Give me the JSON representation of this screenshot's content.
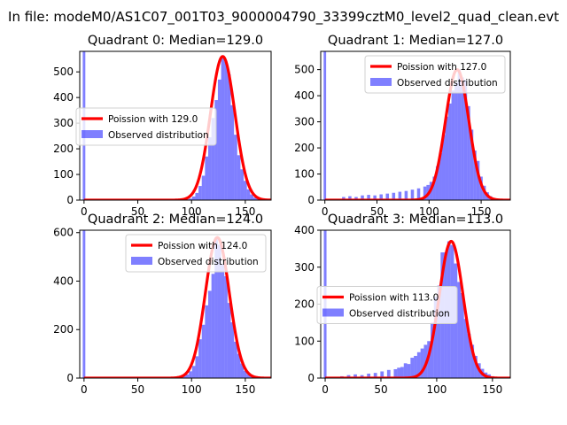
{
  "suptitle": "In file: modeM0/AS1C07_001T03_9000004790_33399cztM0_level2_quad_clean.evt",
  "colors": {
    "hist": "#0000ff",
    "hist_opacity": 0.5,
    "fit_line": "#ff0000",
    "axes": "#000000",
    "background": "#ffffff"
  },
  "legend_hist_label": "Observed distribution",
  "chart_data": [
    {
      "type": "histogram+line",
      "quadrant": 0,
      "title": "Quadrant 0: Median=129.0",
      "fit_label": "Poission with 129.0",
      "mean": 129.0,
      "xlim": [
        -4,
        174
      ],
      "ylim": [
        0,
        580
      ],
      "xticks": [
        0,
        50,
        100,
        150
      ],
      "yticks": [
        0,
        100,
        200,
        300,
        400,
        500
      ],
      "legend_loc": "center-left",
      "bin_width": 3,
      "spike": {
        "x": 0,
        "value": 580
      },
      "hist": [
        [
          90,
          1
        ],
        [
          93,
          1
        ],
        [
          96,
          3
        ],
        [
          99,
          6
        ],
        [
          102,
          14
        ],
        [
          105,
          28
        ],
        [
          108,
          55
        ],
        [
          111,
          95
        ],
        [
          114,
          170
        ],
        [
          117,
          245
        ],
        [
          120,
          320
        ],
        [
          123,
          390
        ],
        [
          126,
          470
        ],
        [
          129,
          560
        ],
        [
          132,
          540
        ],
        [
          135,
          490
        ],
        [
          138,
          370
        ],
        [
          141,
          255
        ],
        [
          144,
          175
        ],
        [
          147,
          120
        ],
        [
          150,
          75
        ],
        [
          153,
          42
        ],
        [
          156,
          22
        ],
        [
          159,
          10
        ],
        [
          162,
          5
        ],
        [
          165,
          2
        ],
        [
          168,
          1
        ]
      ]
    },
    {
      "type": "histogram+line",
      "quadrant": 1,
      "title": "Quadrant 1: Median=127.0",
      "fit_label": "Poission with 127.0",
      "mean": 127.0,
      "xlim": [
        -4,
        178
      ],
      "ylim": [
        0,
        570
      ],
      "xticks": [
        0,
        50,
        100,
        150
      ],
      "yticks": [
        0,
        100,
        200,
        300,
        400,
        500
      ],
      "legend_loc": "upper-right",
      "bin_width": 3,
      "spike": {
        "x": 0,
        "value": 570
      },
      "hist": [
        [
          18,
          12
        ],
        [
          24,
          15
        ],
        [
          30,
          12
        ],
        [
          36,
          18
        ],
        [
          42,
          20
        ],
        [
          48,
          18
        ],
        [
          54,
          22
        ],
        [
          60,
          25
        ],
        [
          66,
          28
        ],
        [
          72,
          32
        ],
        [
          78,
          35
        ],
        [
          84,
          40
        ],
        [
          90,
          45
        ],
        [
          96,
          52
        ],
        [
          99,
          58
        ],
        [
          102,
          70
        ],
        [
          105,
          90
        ],
        [
          108,
          130
        ],
        [
          111,
          180
        ],
        [
          114,
          250
        ],
        [
          117,
          320
        ],
        [
          120,
          370
        ],
        [
          123,
          420
        ],
        [
          126,
          450
        ],
        [
          129,
          500
        ],
        [
          132,
          470
        ],
        [
          135,
          460
        ],
        [
          138,
          360
        ],
        [
          141,
          270
        ],
        [
          144,
          190
        ],
        [
          147,
          150
        ],
        [
          150,
          90
        ],
        [
          153,
          55
        ],
        [
          156,
          30
        ],
        [
          159,
          15
        ],
        [
          162,
          8
        ],
        [
          165,
          4
        ],
        [
          168,
          2
        ]
      ]
    },
    {
      "type": "histogram+line",
      "quadrant": 2,
      "title": "Quadrant 2: Median=124.0",
      "fit_label": "Poission with 124.0",
      "mean": 124.0,
      "xlim": [
        -4,
        174
      ],
      "ylim": [
        0,
        610
      ],
      "xticks": [
        0,
        50,
        100,
        150
      ],
      "yticks": [
        0,
        200,
        400,
        600
      ],
      "legend_loc": "upper-right",
      "bin_width": 3,
      "spike": {
        "x": 0,
        "value": 610
      },
      "hist": [
        [
          84,
          2
        ],
        [
          87,
          3
        ],
        [
          90,
          5
        ],
        [
          93,
          8
        ],
        [
          96,
          15
        ],
        [
          99,
          28
        ],
        [
          102,
          50
        ],
        [
          105,
          90
        ],
        [
          108,
          160
        ],
        [
          111,
          220
        ],
        [
          114,
          300
        ],
        [
          117,
          360
        ],
        [
          120,
          430
        ],
        [
          123,
          580
        ],
        [
          126,
          550
        ],
        [
          129,
          470
        ],
        [
          132,
          420
        ],
        [
          135,
          310
        ],
        [
          138,
          230
        ],
        [
          141,
          150
        ],
        [
          144,
          100
        ],
        [
          147,
          60
        ],
        [
          150,
          30
        ],
        [
          153,
          15
        ],
        [
          156,
          8
        ],
        [
          159,
          4
        ],
        [
          162,
          2
        ]
      ]
    },
    {
      "type": "histogram+line",
      "quadrant": 3,
      "title": "Quadrant 3: Median=113.0",
      "fit_label": "Poission with 113.0",
      "mean": 113.0,
      "xlim": [
        -4,
        166
      ],
      "ylim": [
        0,
        400
      ],
      "xticks": [
        0,
        50,
        100,
        150
      ],
      "yticks": [
        0,
        100,
        200,
        300,
        400
      ],
      "legend_loc": "center-left",
      "bin_width": 3,
      "spike": {
        "x": 0,
        "value": 400
      },
      "hist": [
        [
          9,
          3
        ],
        [
          15,
          5
        ],
        [
          21,
          8
        ],
        [
          27,
          10
        ],
        [
          33,
          8
        ],
        [
          39,
          12
        ],
        [
          45,
          14
        ],
        [
          51,
          18
        ],
        [
          57,
          22
        ],
        [
          63,
          24
        ],
        [
          66,
          28
        ],
        [
          69,
          30
        ],
        [
          72,
          40
        ],
        [
          75,
          38
        ],
        [
          78,
          55
        ],
        [
          81,
          60
        ],
        [
          84,
          70
        ],
        [
          87,
          80
        ],
        [
          90,
          90
        ],
        [
          93,
          100
        ],
        [
          96,
          150
        ],
        [
          99,
          220
        ],
        [
          102,
          250
        ],
        [
          105,
          340
        ],
        [
          108,
          340
        ],
        [
          111,
          370
        ],
        [
          114,
          360
        ],
        [
          117,
          310
        ],
        [
          120,
          260
        ],
        [
          123,
          230
        ],
        [
          126,
          160
        ],
        [
          129,
          120
        ],
        [
          132,
          90
        ],
        [
          135,
          60
        ],
        [
          138,
          40
        ],
        [
          141,
          25
        ],
        [
          144,
          15
        ],
        [
          147,
          10
        ],
        [
          150,
          5
        ],
        [
          153,
          2
        ]
      ]
    }
  ]
}
